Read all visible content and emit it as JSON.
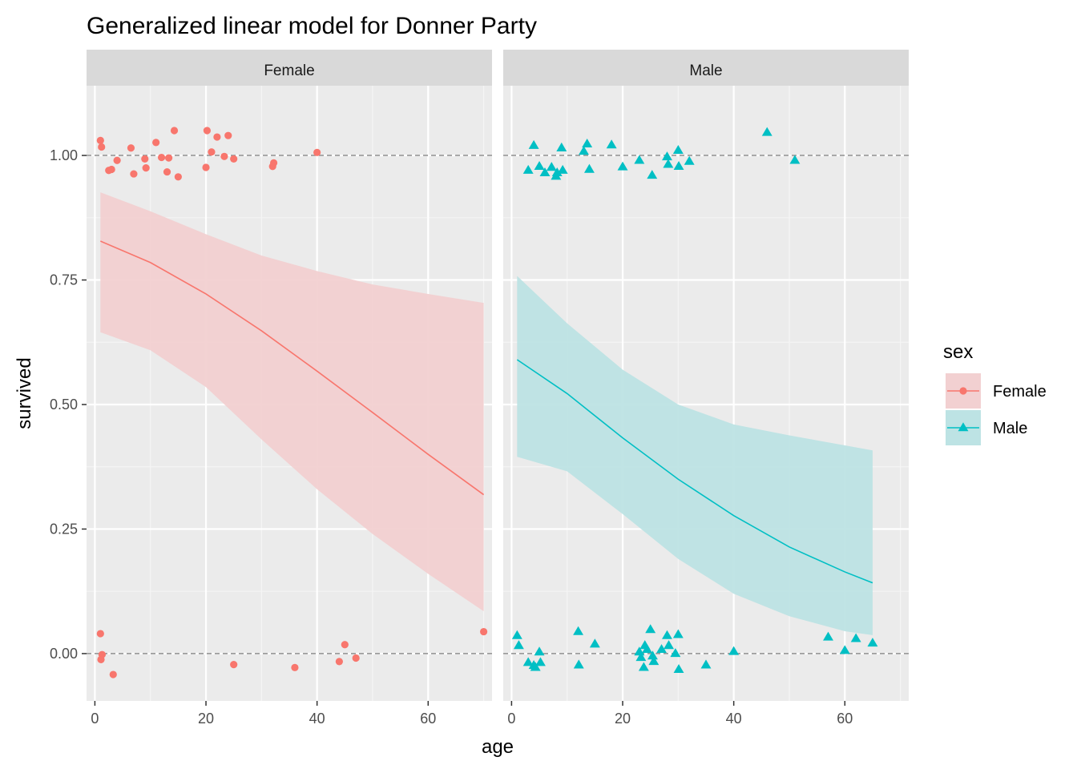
{
  "chart_data": {
    "type": "scatter",
    "title": "Generalized linear model for Donner Party",
    "xlabel": "age",
    "ylabel": "survived",
    "xlim": [
      -1.5,
      71.5
    ],
    "ylim": [
      -0.095,
      1.14
    ],
    "x_ticks": [
      0,
      20,
      40,
      60
    ],
    "x_tick_labels": [
      "0",
      "20",
      "40",
      "60"
    ],
    "y_ticks": [
      0,
      0.25,
      0.5,
      0.75,
      1
    ],
    "y_tick_labels": [
      "0.00",
      "0.25",
      "0.50",
      "0.75",
      "1.00"
    ],
    "reference_lines": [
      0,
      1
    ],
    "grid": true,
    "legend": {
      "title": "sex",
      "position": "right",
      "entries": [
        {
          "label": "Female",
          "color": "#f8766d",
          "shape": "circle"
        },
        {
          "label": "Male",
          "color": "#00bfc4",
          "shape": "triangle"
        }
      ]
    },
    "panels": [
      {
        "name": "Female",
        "color": "#f8766d",
        "fill": "#f2d0d1",
        "shape": "circle",
        "points": [
          [
            1,
            1.03
          ],
          [
            1.2,
            1.017
          ],
          [
            2.5,
            0.97
          ],
          [
            3,
            0.972
          ],
          [
            4,
            0.99
          ],
          [
            6.5,
            1.015
          ],
          [
            7,
            0.963
          ],
          [
            9,
            0.993
          ],
          [
            9.2,
            0.975
          ],
          [
            11,
            1.026
          ],
          [
            12,
            0.996
          ],
          [
            13,
            0.967
          ],
          [
            13.3,
            0.995
          ],
          [
            14.3,
            1.05
          ],
          [
            15,
            0.957
          ],
          [
            20,
            0.976
          ],
          [
            20.2,
            1.05
          ],
          [
            21,
            1.007
          ],
          [
            22,
            1.037
          ],
          [
            23.3,
            0.998
          ],
          [
            24,
            1.04
          ],
          [
            25,
            0.993
          ],
          [
            32,
            0.978
          ],
          [
            32.2,
            0.985
          ],
          [
            40,
            1.006
          ],
          [
            1,
            0.04
          ],
          [
            1.3,
            -0.002
          ],
          [
            1.1,
            -0.012
          ],
          [
            3.3,
            -0.042
          ],
          [
            25,
            -0.022
          ],
          [
            36,
            -0.028
          ],
          [
            44,
            -0.016
          ],
          [
            45,
            0.018
          ],
          [
            47,
            -0.009
          ],
          [
            70,
            0.044
          ]
        ],
        "fit": {
          "x": [
            1,
            10,
            20,
            30,
            40,
            50,
            60,
            70
          ],
          "y": [
            0.828,
            0.785,
            0.722,
            0.648,
            0.567,
            0.484,
            0.4,
            0.319
          ],
          "lower": [
            0.645,
            0.609,
            0.535,
            0.43,
            0.33,
            0.24,
            0.16,
            0.085
          ],
          "upper": [
            0.926,
            0.888,
            0.842,
            0.799,
            0.768,
            0.741,
            0.722,
            0.704
          ]
        }
      },
      {
        "name": "Male",
        "color": "#00bfc4",
        "fill": "#bde3e4",
        "shape": "triangle",
        "points": [
          [
            3,
            0.97
          ],
          [
            4,
            1.02
          ],
          [
            5,
            0.978
          ],
          [
            6,
            0.965
          ],
          [
            7.2,
            0.976
          ],
          [
            8,
            0.958
          ],
          [
            8.2,
            0.965
          ],
          [
            9,
            1.015
          ],
          [
            9.2,
            0.97
          ],
          [
            13,
            1.008
          ],
          [
            13.6,
            1.023
          ],
          [
            14,
            0.972
          ],
          [
            18,
            1.021
          ],
          [
            20,
            0.977
          ],
          [
            23,
            0.99
          ],
          [
            25.3,
            0.96
          ],
          [
            28,
            0.997
          ],
          [
            28.2,
            0.982
          ],
          [
            30,
            1.01
          ],
          [
            30.1,
            0.978
          ],
          [
            32,
            0.988
          ],
          [
            46,
            1.046
          ],
          [
            51,
            0.99
          ],
          [
            1,
            0.036
          ],
          [
            1.3,
            0.016
          ],
          [
            3,
            -0.018
          ],
          [
            4,
            -0.024
          ],
          [
            4.3,
            -0.028
          ],
          [
            5,
            0.003
          ],
          [
            5.2,
            -0.018
          ],
          [
            12,
            0.044
          ],
          [
            12.1,
            -0.023
          ],
          [
            15,
            0.019
          ],
          [
            23,
            0.003
          ],
          [
            23.3,
            -0.008
          ],
          [
            23.8,
            -0.028
          ],
          [
            24,
            0.016
          ],
          [
            24.4,
            0.008
          ],
          [
            25,
            0.048
          ],
          [
            25.4,
            -0.005
          ],
          [
            25.6,
            -0.016
          ],
          [
            27,
            0.008
          ],
          [
            28,
            0.036
          ],
          [
            28.3,
            0.016
          ],
          [
            29.5,
            0.0
          ],
          [
            30,
            0.038
          ],
          [
            30.1,
            -0.032
          ],
          [
            35,
            -0.023
          ],
          [
            40,
            0.004
          ],
          [
            57,
            0.033
          ],
          [
            60,
            0.006
          ],
          [
            62,
            0.03
          ],
          [
            65,
            0.021
          ]
        ],
        "fit": {
          "x": [
            1,
            10,
            20,
            30,
            40,
            50,
            60,
            65
          ],
          "y": [
            0.59,
            0.522,
            0.433,
            0.35,
            0.277,
            0.214,
            0.164,
            0.142
          ],
          "lower": [
            0.395,
            0.366,
            0.28,
            0.19,
            0.12,
            0.075,
            0.045,
            0.037
          ],
          "upper": [
            0.758,
            0.663,
            0.57,
            0.5,
            0.46,
            0.438,
            0.418,
            0.408
          ]
        }
      }
    ]
  }
}
